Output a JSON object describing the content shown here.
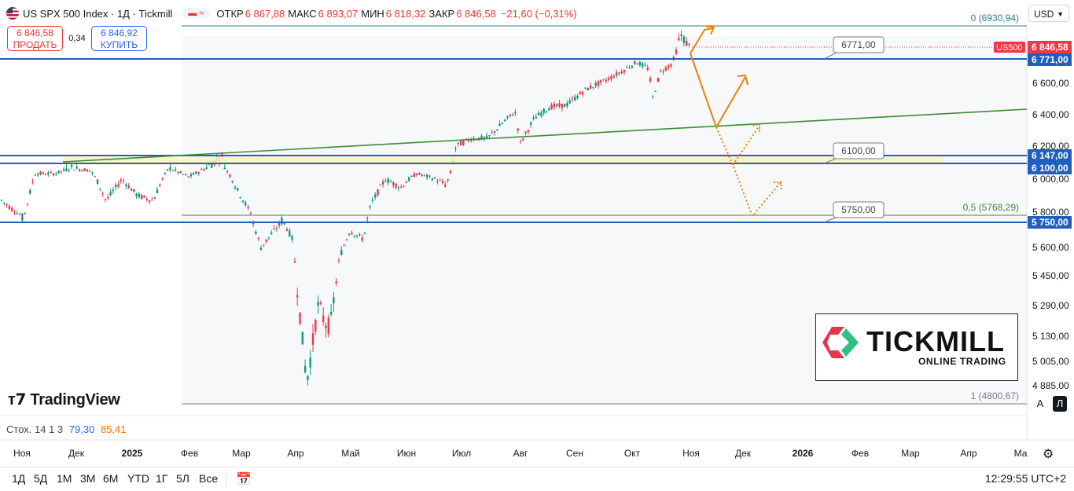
{
  "header": {
    "symbol_title": "US SPX 500 Index · 1Д · Tickmill",
    "ohlc": [
      {
        "label": "ОТКР",
        "value": "6 867,88"
      },
      {
        "label": "МАКС",
        "value": "6 893,07"
      },
      {
        "label": "МИН",
        "value": "6 818,32"
      },
      {
        "label": "ЗАКР",
        "value": "6 846,58"
      }
    ],
    "change": "−21,60 (−0,31%)",
    "currency": "USD"
  },
  "trade": {
    "sell_price": "6 846,58",
    "sell_label": "ПРОДАТЬ",
    "spread": "0,34",
    "buy_price": "6 846,92",
    "buy_label": "КУПИТЬ"
  },
  "indicator": {
    "label": "Стох. 14 1 3",
    "k_value": "79,30",
    "d_value": "85,41"
  },
  "timeframes": [
    "1Д",
    "5Д",
    "1М",
    "3М",
    "6М",
    "YTD",
    "1Г",
    "5Л",
    "Все"
  ],
  "clock": "12:29:55 UTC+2",
  "branding": {
    "tradingview": "TradingView",
    "tickmill": "TICKMILL",
    "tickmill_sub": "ONLINE TRADING"
  },
  "scale_buttons": [
    "A",
    "Л"
  ],
  "chart_data": {
    "type": "candlestick",
    "symbol": "US500",
    "y_axis_ticks": [
      "6 600,00",
      "6 400,00",
      "6 200,00",
      "6 000,00",
      "5 800,00",
      "5 600,00",
      "5 450,00",
      "5 290,00",
      "5 130,00",
      "5 005,00",
      "4 885,00"
    ],
    "x_axis_ticks": [
      "Ноя",
      "Дек",
      "2025",
      "Фев",
      "Мар",
      "Апр",
      "Май",
      "Июн",
      "Июл",
      "Авг",
      "Сен",
      "Окт",
      "Ноя",
      "Дек",
      "2026",
      "Фев",
      "Мар",
      "Апр",
      "Ма"
    ],
    "price_labels": [
      {
        "text": "US500",
        "value": "6846,58",
        "color": "#f23645"
      },
      {
        "text": "",
        "value": "6771,00",
        "color": "#1e5fbf"
      },
      {
        "text": "",
        "value": "6147,00",
        "color": "#1e5fbf"
      },
      {
        "text": "",
        "value": "6100,00",
        "color": "#1e5fbf"
      },
      {
        "text": "",
        "value": "5750,00",
        "color": "#1e5fbf"
      }
    ],
    "level_callouts": [
      "6771,00",
      "6100,00",
      "5750,00"
    ],
    "fib_levels": [
      {
        "label": "0 (6930,94)",
        "value": 6930.94
      },
      {
        "label": "0,5 (5768,29)",
        "value": 5768.29
      },
      {
        "label": "1 (4800,67)",
        "value": 4800.67
      }
    ],
    "horizontal_levels": [
      6771,
      6147,
      6100,
      5750
    ],
    "trendline": "green, rising from Jan 2025 to right edge",
    "support_zone": [
      6100,
      6147
    ],
    "projection": "orange arrows: decline toward ~6330 then rebound; dotted alternative toward ~5770 then rebound",
    "series": [
      {
        "name": "",
        "type": "candles",
        "up_color": "#089981",
        "down_color": "#f23645"
      }
    ],
    "last_close": 6846.58,
    "grid": false
  },
  "colors": {
    "up": "#089981",
    "down": "#f23645",
    "level_blue": "#1e5fbf",
    "trend_green": "#3d8b37",
    "arrow_orange": "#e8820c",
    "zone_yellow": "#fff3b0"
  }
}
